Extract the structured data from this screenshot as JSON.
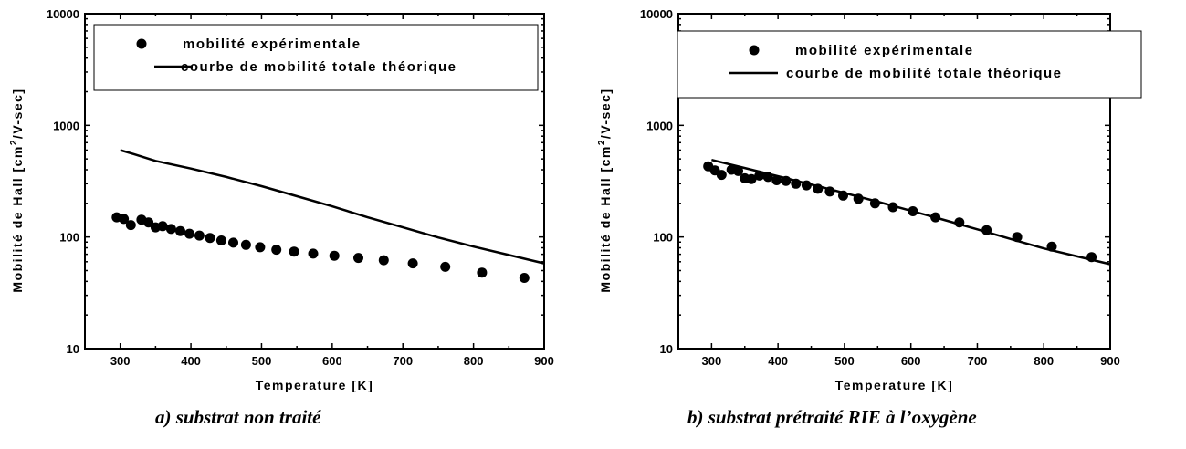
{
  "chart_data": [
    {
      "type": "scatter",
      "xlabel": "Temperature [K]",
      "ylabel": "Mobilité de Hall [cm²/V-sec]",
      "ylabel_parts": [
        "Mobilité de Hall [cm",
        "2",
        "/V-sec]"
      ],
      "caption": "a)  substrat non traité",
      "xlim": [
        250,
        900
      ],
      "ylim": [
        10,
        10000
      ],
      "yscale": "log",
      "xticks": [
        "300",
        "400",
        "500",
        "600",
        "700",
        "800",
        "900"
      ],
      "yticks": [
        "10",
        "100",
        "1000",
        "10000"
      ],
      "legend_position": "top",
      "series": [
        {
          "name": "mobilité expérimentale",
          "style": "points",
          "x": [
            295,
            305,
            315,
            330,
            340,
            350,
            360,
            372,
            385,
            398,
            412,
            427,
            443,
            460,
            478,
            498,
            521,
            546,
            573,
            603,
            637,
            673,
            714,
            760,
            812,
            872
          ],
          "y": [
            150,
            145,
            128,
            143,
            135,
            122,
            125,
            118,
            113,
            107,
            103,
            98,
            93,
            89,
            85,
            81,
            77,
            74,
            71,
            68,
            65,
            62,
            58,
            54,
            48,
            43
          ]
        },
        {
          "name": "courbe de mobilité totale théorique",
          "style": "line",
          "x": [
            300,
            320,
            350,
            400,
            450,
            500,
            550,
            600,
            650,
            700,
            750,
            800,
            850,
            900
          ],
          "y": [
            600,
            550,
            480,
            410,
            345,
            285,
            232,
            188,
            150,
            122,
            99,
            82,
            69,
            58
          ]
        }
      ]
    },
    {
      "type": "scatter",
      "xlabel": "Temperature [K]",
      "ylabel": "Mobilité de Hall [cm²/V-sec]",
      "ylabel_parts": [
        "Mobilité de Hall [cm",
        "2",
        "/V-sec]"
      ],
      "caption": "b)  substrat prétraité RIE à l’oxygène",
      "xlim": [
        250,
        900
      ],
      "ylim": [
        10,
        10000
      ],
      "yscale": "log",
      "xticks": [
        "300",
        "400",
        "500",
        "600",
        "700",
        "800",
        "900"
      ],
      "yticks": [
        "10",
        "100",
        "1000",
        "10000"
      ],
      "legend_position": "top",
      "series": [
        {
          "name": "mobilité expérimentale",
          "style": "points",
          "x": [
            295,
            305,
            315,
            330,
            340,
            350,
            360,
            372,
            385,
            398,
            412,
            427,
            443,
            460,
            478,
            498,
            521,
            546,
            573,
            603,
            637,
            673,
            714,
            760,
            812,
            872
          ],
          "y": [
            430,
            395,
            360,
            400,
            390,
            335,
            330,
            355,
            345,
            322,
            318,
            300,
            290,
            270,
            255,
            235,
            220,
            200,
            185,
            170,
            150,
            135,
            115,
            100,
            82,
            66
          ],
          "note": null
        },
        {
          "name": "courbe de mobilité totale théorique",
          "style": "line",
          "x": [
            300,
            350,
            400,
            450,
            500,
            550,
            600,
            650,
            700,
            750,
            800,
            850,
            900
          ],
          "y": [
            490,
            415,
            350,
            295,
            248,
            207,
            172,
            142,
            117,
            96,
            79,
            67,
            57
          ]
        }
      ]
    }
  ]
}
